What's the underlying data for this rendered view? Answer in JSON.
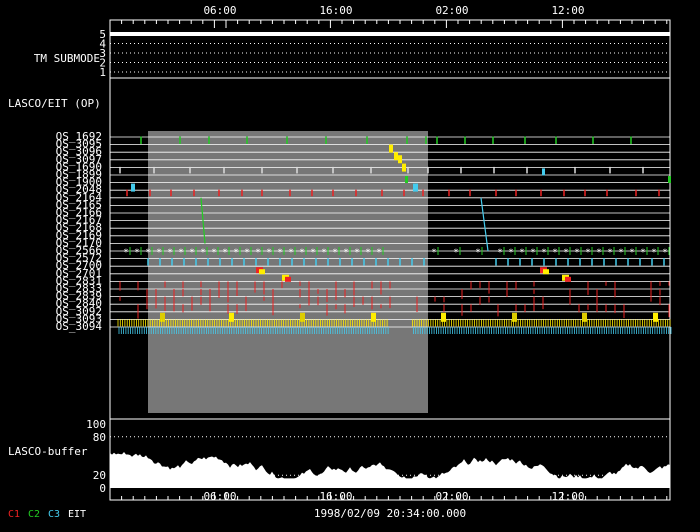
{
  "chart_data": {
    "type": "timeline",
    "x_ticks_top": [
      "06:00",
      "16:00",
      "02:00",
      "12:00"
    ],
    "x_ticks_bottom": [
      "06:00",
      "16:00",
      "02:00",
      "12:00"
    ],
    "footer_time": "1998/02/09 20:34:00.000",
    "tm_submode": {
      "label": "TM SUBMODE",
      "levels": [
        "5",
        "4",
        "3",
        "2",
        "1"
      ],
      "current_level": 5
    },
    "section_label": "LASCO/EIT (OP)",
    "rows": [
      {
        "name": "OS_1692",
        "color": "#22cc22"
      },
      {
        "name": "OS_3095",
        "color": "#ffee00"
      },
      {
        "name": "OS_3096",
        "color": "#ffee00"
      },
      {
        "name": "OS_3097",
        "color": "#ffee00"
      },
      {
        "name": "OS_1690",
        "color": "#44ccee"
      },
      {
        "name": "OS_1899",
        "color": "#22cc22"
      },
      {
        "name": "OS_1900",
        "color": "#44ccee"
      },
      {
        "name": "OS_2048",
        "color": "#ee2222"
      },
      {
        "name": "OS_2164",
        "color": "#22cc22"
      },
      {
        "name": "OS_2165",
        "color": "#22cc22"
      },
      {
        "name": "OS_2166",
        "color": "#22cc22"
      },
      {
        "name": "OS_2167",
        "color": "#44ccee"
      },
      {
        "name": "OS_2168",
        "color": "#44ccee"
      },
      {
        "name": "OS_2169",
        "color": "#44ccee"
      },
      {
        "name": "OS_2170",
        "color": "#44ccee"
      },
      {
        "name": "OS_2566",
        "color": "#22cc22"
      },
      {
        "name": "OS_2572",
        "color": "#44ccee"
      },
      {
        "name": "OS_2700",
        "color": "#ee2222"
      },
      {
        "name": "OS_2701",
        "color": "#ffee00"
      },
      {
        "name": "OS_2831",
        "color": "#ee2222"
      },
      {
        "name": "OS_2833",
        "color": "#ee2222"
      },
      {
        "name": "OS_2839",
        "color": "#ee2222"
      },
      {
        "name": "OS_2840",
        "color": "#ee2222"
      },
      {
        "name": "OS_3092",
        "color": "#ffee00"
      },
      {
        "name": "OS_3093",
        "color": "#ffee00"
      },
      {
        "name": "OS_3094",
        "color": "#44ccee"
      }
    ],
    "buffer": {
      "label": "LASCO-buffer",
      "y_ticks": [
        "100",
        "80",
        "20",
        "0"
      ]
    },
    "legend": [
      {
        "label": "C1",
        "color": "#ee2222"
      },
      {
        "label": "C2",
        "color": "#22cc22"
      },
      {
        "label": "C3",
        "color": "#44ccee"
      },
      {
        "label": "EIT",
        "color": "#ffffff"
      }
    ]
  }
}
